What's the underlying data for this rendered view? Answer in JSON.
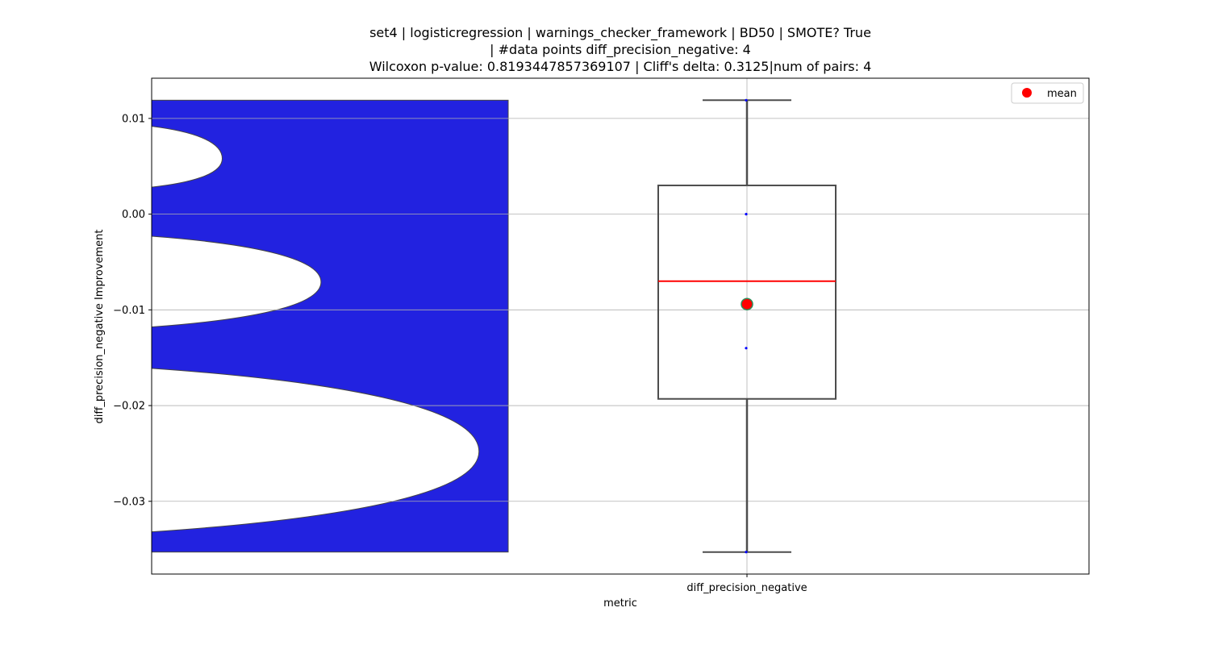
{
  "chart_data": {
    "type": "box",
    "title_lines": [
      "set4 | logisticregression | warnings_checker_framework | BD50 | SMOTE? True",
      "| #data points diff_precision_negative: 4",
      "Wilcoxon p-value: 0.8193447857369107 | Cliff's delta: 0.3125|num of pairs: 4"
    ],
    "xlabel": "metric",
    "ylabel": "diff_precision_negative Improvement",
    "categories": [
      "diff_precision_negative"
    ],
    "ylim": [
      -0.0376,
      0.0142
    ],
    "y_ticks": [
      0.01,
      0.0,
      -0.01,
      -0.02,
      -0.03
    ],
    "y_tick_labels": [
      "0.01",
      "0.00",
      "−0.01",
      "−0.02",
      "−0.03"
    ],
    "grid": true,
    "legend": {
      "position": "top-right",
      "entries": [
        {
          "label": "mean",
          "color": "#ff0000"
        }
      ]
    },
    "box": {
      "whisker_low": -0.0353,
      "q1": -0.0193,
      "median": -0.007,
      "q3": 0.003,
      "whisker_high": 0.0119,
      "mean": -0.0094
    },
    "points": [
      0.0119,
      0.0,
      -0.014,
      -0.0353
    ],
    "violin": {
      "fill_color": "#2222e0",
      "edge_color": "#444444",
      "bumps": [
        {
          "center": 0.0058,
          "depth": 0.198,
          "upper": 0.0092,
          "lower": 0.0028
        },
        {
          "center": -0.0071,
          "depth": 0.475,
          "upper": -0.0023,
          "lower": -0.0118
        },
        {
          "center": -0.0248,
          "depth": 0.918,
          "upper": -0.0161,
          "lower": -0.0332
        }
      ]
    },
    "colors": {
      "median": "#ff0000",
      "mean_fill": "#ff0000",
      "mean_edge": "#2e8b57",
      "box_edge": "#4d4d4d",
      "points": "#0000ff",
      "grid": "#b0b0b0"
    }
  }
}
